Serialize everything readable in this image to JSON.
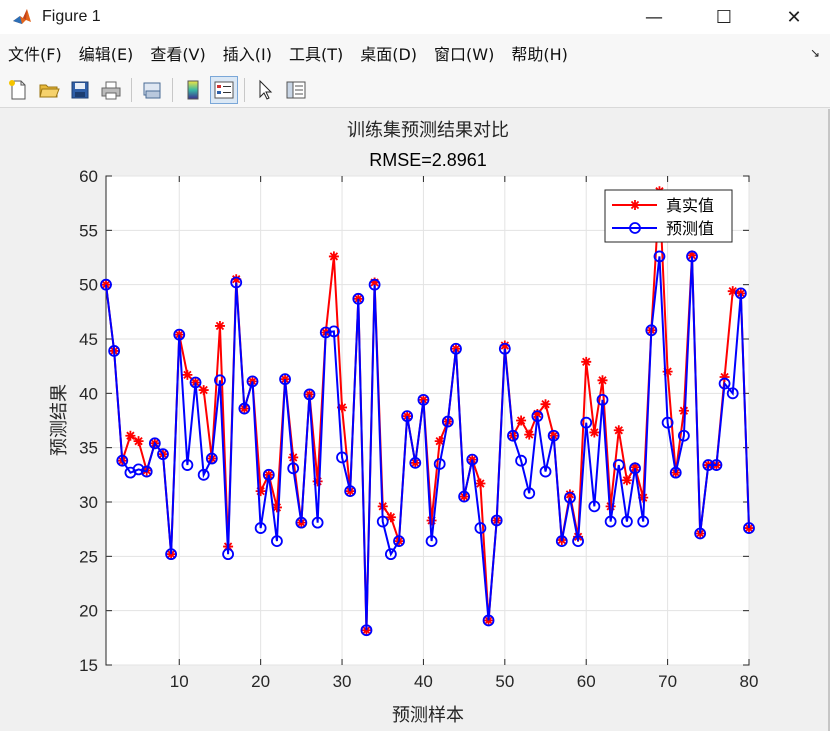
{
  "window": {
    "title": "Figure 1",
    "minimize": "—",
    "maximize": "☐",
    "close": "✕"
  },
  "menu": {
    "items": [
      "文件(F)",
      "编辑(E)",
      "查看(V)",
      "插入(I)",
      "工具(T)",
      "桌面(D)",
      "窗口(W)",
      "帮助(H)"
    ],
    "arrow": "↘"
  },
  "toolbar": {
    "buttons": [
      "new-figure-icon",
      "open-file-icon",
      "save-icon",
      "print-icon",
      "link-plot-icon",
      "colorbar-icon",
      "legend-icon",
      "edit-plot-pointer-icon",
      "property-inspector-icon"
    ]
  },
  "chart_data": {
    "type": "line",
    "title": "训练集预测结果对比",
    "subtitle": "RMSE=2.8961",
    "xlabel": "预测样本",
    "ylabel": "预测结果",
    "xlim": [
      1,
      80
    ],
    "ylim": [
      15,
      60
    ],
    "xticks": [
      10,
      20,
      30,
      40,
      50,
      60,
      70,
      80
    ],
    "yticks": [
      15,
      20,
      25,
      30,
      35,
      40,
      45,
      50,
      55,
      60
    ],
    "grid": true,
    "legend_position": "top-right",
    "x": [
      1,
      2,
      3,
      4,
      5,
      6,
      7,
      8,
      9,
      10,
      11,
      12,
      13,
      14,
      15,
      16,
      17,
      18,
      19,
      20,
      21,
      22,
      23,
      24,
      25,
      26,
      27,
      28,
      29,
      30,
      31,
      32,
      33,
      34,
      35,
      36,
      37,
      38,
      39,
      40,
      41,
      42,
      43,
      44,
      45,
      46,
      47,
      48,
      49,
      50,
      51,
      52,
      53,
      54,
      55,
      56,
      57,
      58,
      59,
      60,
      61,
      62,
      63,
      64,
      65,
      66,
      67,
      68,
      69,
      70,
      71,
      72,
      73,
      74,
      75,
      76,
      77,
      78,
      79,
      80
    ],
    "series": [
      {
        "name": "真实值",
        "color": "#ff0000",
        "marker": "star",
        "values": [
          50.0,
          43.9,
          33.8,
          36.1,
          35.6,
          32.9,
          35.4,
          34.4,
          25.2,
          45.4,
          41.7,
          41.0,
          40.3,
          34.0,
          46.2,
          25.9,
          50.5,
          38.6,
          41.1,
          31.0,
          32.5,
          29.5,
          41.3,
          34.1,
          28.1,
          39.9,
          31.9,
          45.6,
          52.6,
          38.7,
          31.0,
          48.7,
          18.2,
          50.2,
          29.6,
          28.6,
          26.4,
          37.9,
          33.6,
          39.4,
          28.3,
          35.6,
          37.4,
          44.1,
          30.5,
          33.9,
          31.7,
          19.1,
          28.3,
          44.4,
          36.1,
          37.5,
          36.2,
          38.1,
          39.0,
          36.1,
          26.5,
          30.7,
          26.8,
          42.9,
          36.4,
          41.2,
          29.6,
          36.6,
          32.0,
          33.2,
          30.4,
          45.8,
          58.6,
          42.0,
          32.7,
          38.4,
          52.7,
          27.1,
          33.4,
          33.4,
          41.5,
          49.4,
          49.2,
          27.6
        ]
      },
      {
        "name": "预测值",
        "color": "#0000ff",
        "marker": "circle",
        "values": [
          50.0,
          43.9,
          33.8,
          32.7,
          33.0,
          32.8,
          35.4,
          34.4,
          25.2,
          45.4,
          33.4,
          41.0,
          32.5,
          34.0,
          41.2,
          25.2,
          50.2,
          38.6,
          41.1,
          27.6,
          32.5,
          26.4,
          41.3,
          33.1,
          28.1,
          39.9,
          28.1,
          45.6,
          45.7,
          34.1,
          31.0,
          48.7,
          18.2,
          50.0,
          28.2,
          25.2,
          26.4,
          37.9,
          33.6,
          39.4,
          26.4,
          33.5,
          37.4,
          44.1,
          30.5,
          33.9,
          27.6,
          19.1,
          28.3,
          44.1,
          36.1,
          33.8,
          30.8,
          37.9,
          32.8,
          36.1,
          26.4,
          30.4,
          26.4,
          37.3,
          29.6,
          39.4,
          28.2,
          33.4,
          28.2,
          33.1,
          28.2,
          45.8,
          52.6,
          37.3,
          32.7,
          36.1,
          52.6,
          27.1,
          33.4,
          33.4,
          40.9,
          40.0,
          49.2,
          27.6
        ]
      }
    ]
  }
}
